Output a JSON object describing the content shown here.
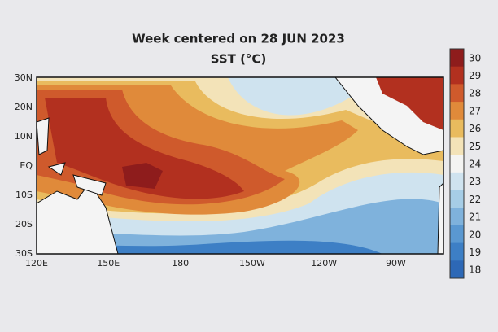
{
  "title": "Week centered on 28 JUN 2023",
  "subtitle": "SST (°C)",
  "lat_labels": [
    "30N",
    "20N",
    "10N",
    "EQ",
    "10S",
    "20S",
    "30S"
  ],
  "lon_labels": [
    "120E",
    "150E",
    "180",
    "150W",
    "120W",
    "90W"
  ],
  "colorbar": {
    "levels": [
      30,
      29,
      28,
      27,
      26,
      25,
      24,
      23,
      22,
      21,
      20,
      19,
      18
    ],
    "colors": [
      "#8e1c1c",
      "#b2301f",
      "#cf5a2c",
      "#e08a3a",
      "#e9bb5e",
      "#f3e3b8",
      "#f4f4f2",
      "#cfe3ef",
      "#a6cde6",
      "#7fb2dc",
      "#5a98d1",
      "#3d7fc5",
      "#2d68b6"
    ]
  }
}
